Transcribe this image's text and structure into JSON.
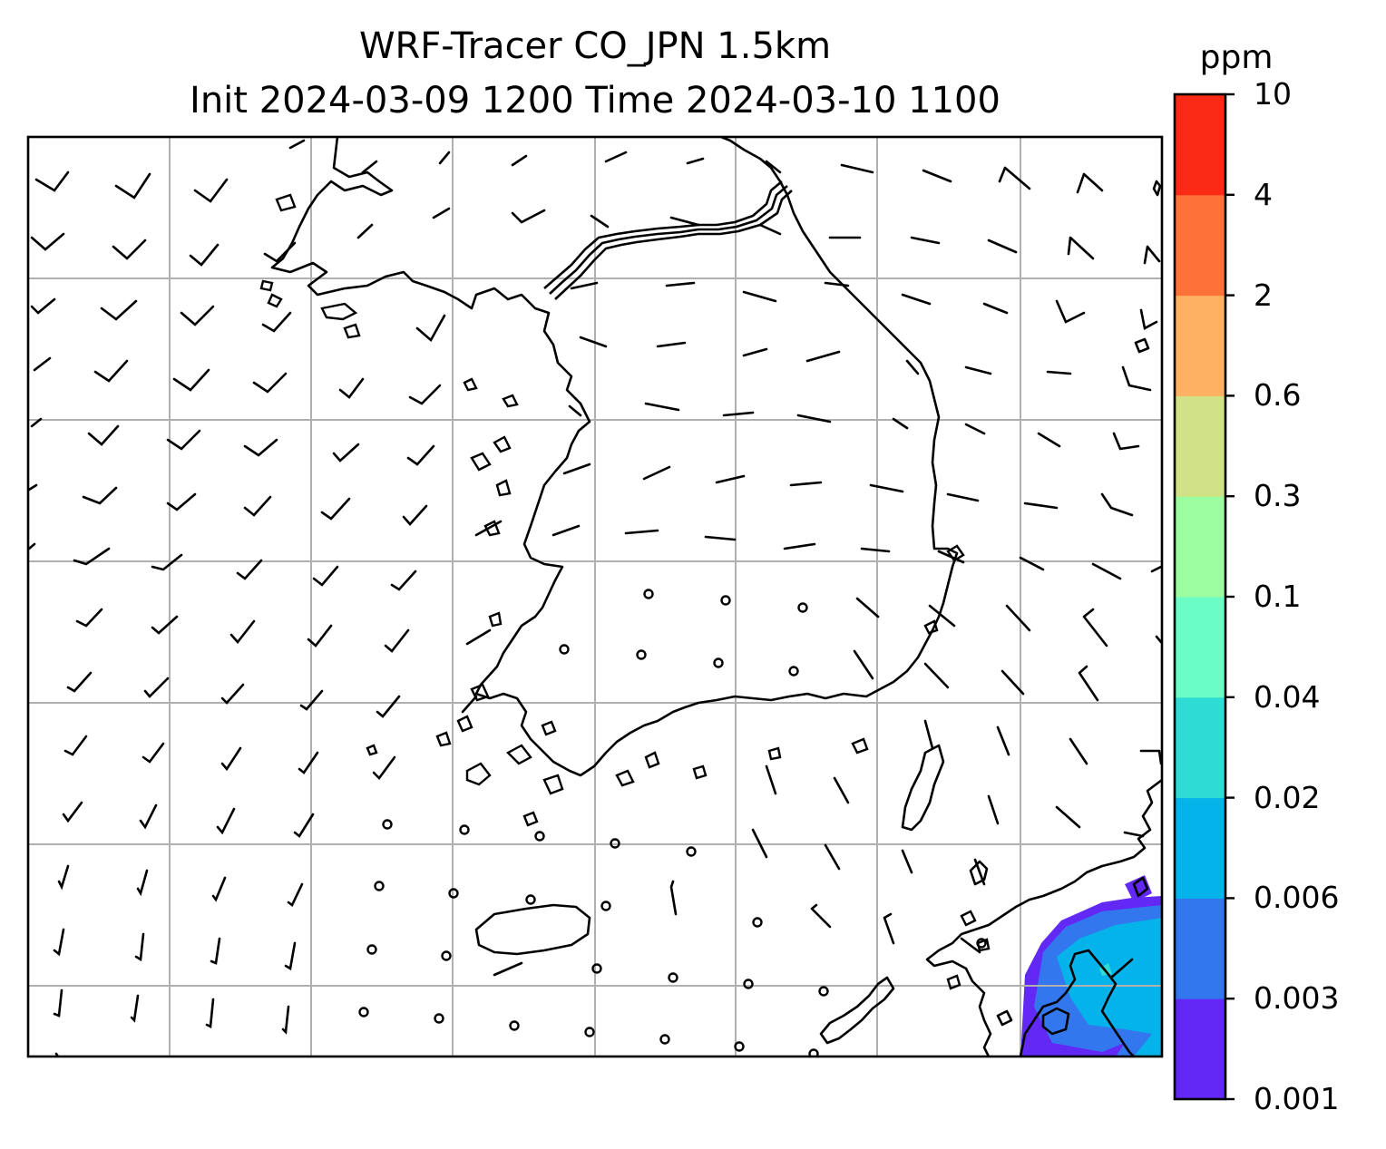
{
  "title": {
    "line1": "WRF-Tracer CO_JPN 1.5km",
    "line2": "Init 2024-03-09 1200 Time 2024-03-10 1100"
  },
  "colorbar": {
    "unit": "ppm",
    "levels": [
      "0.001",
      "0.003",
      "0.006",
      "0.02",
      "0.04",
      "0.1",
      "0.3",
      "0.6",
      "2",
      "4",
      "10"
    ],
    "colors": [
      "#6229f5",
      "#3377ee",
      "#04b3e9",
      "#2fdcd5",
      "#6afdc5",
      "#9bfd9f",
      "#d0e285",
      "#feb063",
      "#fe7139",
      "#fa2a16"
    ]
  },
  "map": {
    "gridlines": true,
    "grid_color": "#b0b0b0",
    "features": [
      "coastline",
      "wind-barbs",
      "co-concentration-contours"
    ]
  }
}
